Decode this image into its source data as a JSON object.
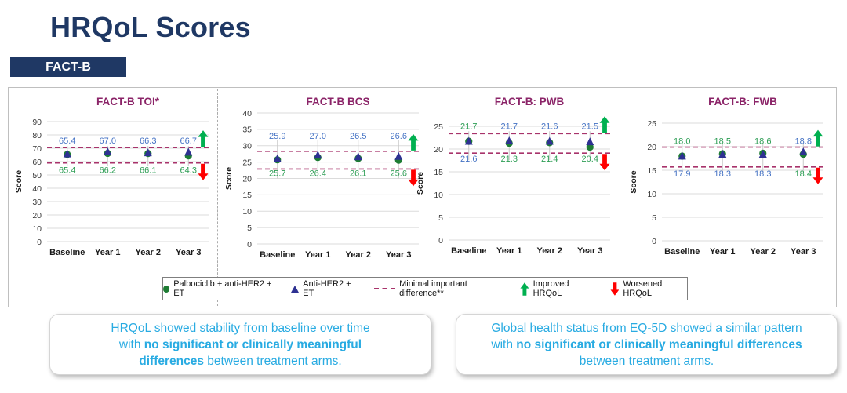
{
  "header": {
    "title": "HRQoL Scores",
    "tag": "FACT-B"
  },
  "colors": {
    "navy": "#1F3864",
    "chart_title": "#8B2468",
    "blue_series": "#4472C4",
    "green_series": "#2E9E55",
    "marker_green": "#1E7C34",
    "marker_blue": "#2E3192",
    "mid_line": "#A8336B",
    "improved": "#00B050",
    "worsened": "#FF0000",
    "callout_text": "#29ABE2",
    "grid": "#DBDBDB",
    "error_bar": "#C8C8C8",
    "axis_text": "#333333"
  },
  "chart_data": [
    {
      "type": "scatter",
      "title": "FACT-B TOI*",
      "ylabel": "Score",
      "categories": [
        "Baseline",
        "Year 1",
        "Year 2",
        "Year 3"
      ],
      "ylim": [
        0,
        90
      ],
      "ytick_step": 10,
      "grid": true,
      "series": [
        {
          "name": "Palbociclib + anti-HER2 + ET",
          "marker": "circle",
          "color": "green",
          "values": [
            65.4,
            66.2,
            66.1,
            64.3
          ]
        },
        {
          "name": "Anti-HER2 + ET",
          "marker": "triangle",
          "color": "blue",
          "values": [
            65.4,
            67.0,
            66.3,
            66.7
          ]
        }
      ],
      "mid_lines": {
        "upper": 70.5,
        "lower": 59.0
      },
      "labels_top": [
        {
          "text": "65.4",
          "color": "blue"
        },
        {
          "text": "67.0",
          "color": "blue"
        },
        {
          "text": "66.3",
          "color": "blue"
        },
        {
          "text": "66.7",
          "color": "blue"
        }
      ],
      "labels_bottom": [
        {
          "text": "65.4",
          "color": "green"
        },
        {
          "text": "66.2",
          "color": "green"
        },
        {
          "text": "66.1",
          "color": "green"
        },
        {
          "text": "64.3",
          "color": "green"
        }
      ],
      "arrows": {
        "improved": true,
        "worsened": true
      },
      "layout": {
        "plot_top": 38,
        "plot_bottom": 191,
        "gap_top": 5,
        "gap_bottom": 13,
        "eb": [
          2,
          4
        ]
      }
    },
    {
      "type": "scatter",
      "title": "FACT-B BCS",
      "ylabel": "Score",
      "categories": [
        "Baseline",
        "Year 1",
        "Year 2",
        "Year 3"
      ],
      "ylim": [
        0,
        40
      ],
      "ytick_step": 5,
      "grid": true,
      "series": [
        {
          "name": "Palbociclib + anti-HER2 + ET",
          "marker": "circle",
          "color": "green",
          "values": [
            25.7,
            26.4,
            26.1,
            25.6
          ]
        },
        {
          "name": "Anti-HER2 + ET",
          "marker": "triangle",
          "color": "blue",
          "values": [
            25.9,
            27.0,
            26.5,
            26.6
          ]
        }
      ],
      "mid_lines": {
        "upper": 28.3,
        "lower": 22.9
      },
      "labels_top": [
        {
          "text": "25.9",
          "color": "blue"
        },
        {
          "text": "27.0",
          "color": "blue"
        },
        {
          "text": "26.5",
          "color": "blue"
        },
        {
          "text": "26.6",
          "color": "blue"
        }
      ],
      "labels_bottom": [
        {
          "text": "25.7",
          "color": "green"
        },
        {
          "text": "26.4",
          "color": "green"
        },
        {
          "text": "26.1",
          "color": "green"
        },
        {
          "text": "25.6",
          "color": "green"
        }
      ],
      "arrows": {
        "improved": true,
        "worsened": true
      },
      "layout": {
        "plot_top": 27,
        "plot_bottom": 194,
        "gap_top": 16,
        "gap_bottom": 9,
        "eb": [
          14,
          12
        ]
      }
    },
    {
      "type": "scatter",
      "title": "FACT-B: PWB",
      "ylabel": "Score",
      "categories": [
        "Baseline",
        "Year 1",
        "Year 2",
        "Year 3"
      ],
      "ylim": [
        0,
        25
      ],
      "ytick_step": 5,
      "grid": true,
      "series": [
        {
          "name": "Palbociclib + anti-HER2 + ET",
          "marker": "circle",
          "color": "green",
          "values": [
            21.7,
            21.3,
            21.4,
            20.4
          ]
        },
        {
          "name": "Anti-HER2 + ET",
          "marker": "triangle",
          "color": "blue",
          "values": [
            21.6,
            21.7,
            21.6,
            21.5
          ]
        }
      ],
      "mid_lines": {
        "upper": 23.4,
        "lower": 19.1
      },
      "labels_top": [
        {
          "text": "21.7",
          "color": "green"
        },
        {
          "text": "21.7",
          "color": "blue"
        },
        {
          "text": "21.6",
          "color": "blue"
        },
        {
          "text": "21.5",
          "color": "blue"
        }
      ],
      "labels_bottom": [
        {
          "text": "21.6",
          "color": "blue"
        },
        {
          "text": "21.3",
          "color": "green"
        },
        {
          "text": "21.4",
          "color": "green"
        },
        {
          "text": "20.4",
          "color": "green"
        }
      ],
      "arrows": {
        "improved": true,
        "worsened": true
      },
      "layout": {
        "plot_top": 44,
        "plot_bottom": 189,
        "gap_top": 6,
        "gap_bottom": 11,
        "eb": [
          3,
          9
        ]
      }
    },
    {
      "type": "scatter",
      "title": "FACT-B: FWB",
      "ylabel": "Score",
      "categories": [
        "Baseline",
        "Year 1",
        "Year 2",
        "Year 3"
      ],
      "ylim": [
        0,
        25
      ],
      "ytick_step": 5,
      "grid": true,
      "series": [
        {
          "name": "Palbociclib + anti-HER2 + ET",
          "marker": "circle",
          "color": "green",
          "values": [
            18.0,
            18.5,
            18.6,
            18.4
          ]
        },
        {
          "name": "Anti-HER2 + ET",
          "marker": "triangle",
          "color": "blue",
          "values": [
            17.9,
            18.3,
            18.3,
            18.8
          ]
        }
      ],
      "mid_lines": {
        "upper": 19.9,
        "lower": 15.7
      },
      "labels_top": [
        {
          "text": "18.0",
          "color": "green"
        },
        {
          "text": "18.5",
          "color": "green"
        },
        {
          "text": "18.6",
          "color": "green"
        },
        {
          "text": "18.8",
          "color": "blue"
        }
      ],
      "labels_bottom": [
        {
          "text": "17.9",
          "color": "blue"
        },
        {
          "text": "18.3",
          "color": "blue"
        },
        {
          "text": "18.3",
          "color": "blue"
        },
        {
          "text": "18.4",
          "color": "green"
        }
      ],
      "arrows": {
        "improved": true,
        "worsened": true
      },
      "layout": {
        "plot_top": 40,
        "plot_bottom": 190,
        "gap_top": 4,
        "gap_bottom": 12,
        "eb": [
          4,
          8
        ]
      }
    }
  ],
  "legend": {
    "items": [
      {
        "type": "circle",
        "label": "Palbociclib + anti-HER2 + ET"
      },
      {
        "type": "triangle",
        "label": "Anti-HER2 + ET"
      },
      {
        "type": "dashed",
        "label": "Minimal important difference**"
      },
      {
        "type": "arrow-up",
        "label": "Improved HRQoL"
      },
      {
        "type": "arrow-down",
        "label": "Worsened HRQoL"
      }
    ]
  },
  "callouts": {
    "left": {
      "lines": [
        [
          {
            "t": "HRQoL showed stability from baseline over time",
            "b": false
          }
        ],
        [
          {
            "t": "with ",
            "b": false
          },
          {
            "t": "no significant or clinically meaningful",
            "b": true
          }
        ],
        [
          {
            "t": "differences",
            "b": true
          },
          {
            "t": " between treatment arms.",
            "b": false
          }
        ]
      ]
    },
    "right": {
      "lines": [
        [
          {
            "t": "Global health status from EQ-5D showed a similar pattern",
            "b": false
          }
        ],
        [
          {
            "t": "with ",
            "b": false
          },
          {
            "t": "no significant or clinically meaningful differences",
            "b": true
          }
        ],
        [
          {
            "t": "between treatment arms.",
            "b": false
          }
        ]
      ]
    }
  }
}
